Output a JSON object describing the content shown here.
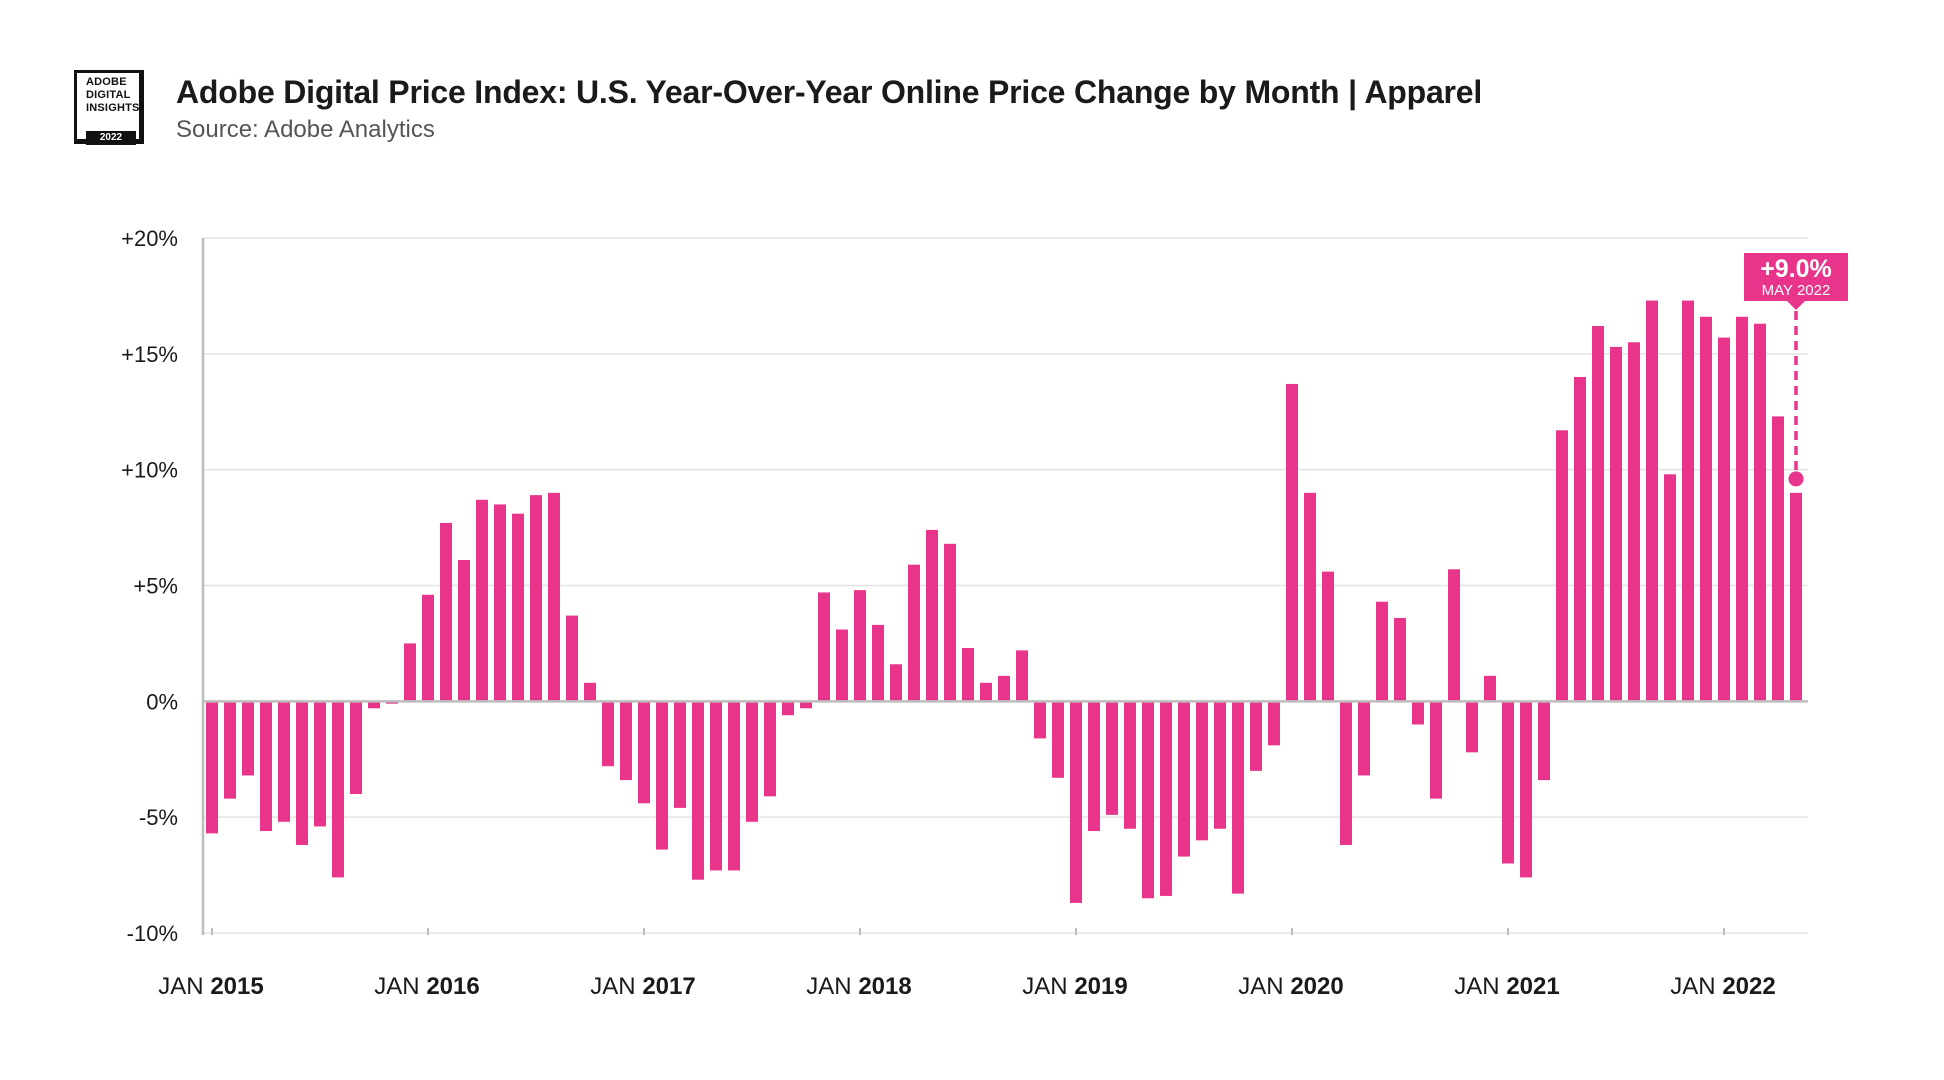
{
  "logo": {
    "line1": "ADOBE",
    "line2": "DIGITAL",
    "line3": "INSIGHTS",
    "year": "2022"
  },
  "header": {
    "title": "Adobe Digital Price Index: U.S. Year-Over-Year Online Price Change by Month  |  Apparel",
    "subtitle": "Source: Adobe Analytics"
  },
  "colors": {
    "bar": "#E8348A",
    "grid": "#e3e3e3",
    "axis": "#bdbdbd"
  },
  "chart_data": {
    "type": "bar",
    "title": "Adobe Digital Price Index: U.S. Year-Over-Year Online Price Change by Month  |  Apparel",
    "xlabel": "",
    "ylabel": "",
    "ylim": [
      -10,
      20
    ],
    "yticks": [
      {
        "value": 20,
        "label": "+20%"
      },
      {
        "value": 15,
        "label": "+15%"
      },
      {
        "value": 10,
        "label": "+10%"
      },
      {
        "value": 5,
        "label": "+5%"
      },
      {
        "value": 0,
        "label": "0%"
      },
      {
        "value": -5,
        "label": "-5%"
      },
      {
        "value": -10,
        "label": "-10%"
      }
    ],
    "xticks": [
      {
        "index": 0,
        "prefix": "JAN ",
        "year": "2015"
      },
      {
        "index": 12,
        "prefix": "JAN ",
        "year": "2016"
      },
      {
        "index": 24,
        "prefix": "JAN ",
        "year": "2017"
      },
      {
        "index": 36,
        "prefix": "JAN ",
        "year": "2018"
      },
      {
        "index": 48,
        "prefix": "JAN ",
        "year": "2019"
      },
      {
        "index": 60,
        "prefix": "JAN ",
        "year": "2020"
      },
      {
        "index": 72,
        "prefix": "JAN ",
        "year": "2021"
      },
      {
        "index": 84,
        "prefix": "JAN ",
        "year": "2022"
      }
    ],
    "start_month": "JAN 2015",
    "end_month": "MAY 2022",
    "values": [
      -5.7,
      -4.2,
      -3.2,
      -5.6,
      -5.2,
      -6.2,
      -5.4,
      -7.6,
      -4.0,
      -0.3,
      -0.1,
      2.5,
      4.6,
      7.7,
      6.1,
      8.7,
      8.5,
      8.1,
      8.9,
      9.0,
      3.7,
      0.8,
      -2.8,
      -3.4,
      -4.4,
      -6.4,
      -4.6,
      -7.7,
      -7.3,
      -7.3,
      -5.2,
      -4.1,
      -0.6,
      -0.3,
      4.7,
      3.1,
      4.8,
      3.3,
      1.6,
      5.9,
      7.4,
      6.8,
      2.3,
      0.8,
      1.1,
      2.2,
      -1.6,
      -3.3,
      -8.7,
      -5.6,
      -4.9,
      -5.5,
      -8.5,
      -8.4,
      -6.7,
      -6.0,
      -5.5,
      -8.3,
      -3.0,
      -1.9,
      13.7,
      9.0,
      5.6,
      -6.2,
      -3.2,
      4.3,
      3.6,
      -1.0,
      -4.2,
      5.7,
      -2.2,
      1.1,
      -7.0,
      -7.6,
      -3.4,
      11.7,
      14.0,
      16.2,
      15.3,
      15.5,
      17.3,
      9.8,
      17.3,
      16.6,
      15.7,
      16.6,
      16.3,
      12.3,
      9.0
    ],
    "callout": {
      "value_label": "+9.0%",
      "month_label": "MAY 2022",
      "index": 88,
      "value": 9.0,
      "marker_value": 9.6
    }
  }
}
